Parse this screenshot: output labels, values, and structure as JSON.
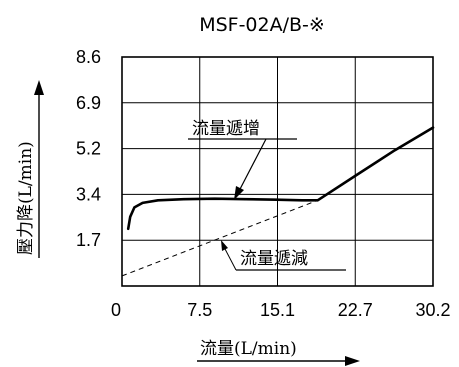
{
  "chart_data": {
    "type": "line",
    "title": "MSF-02A/B-※",
    "xlabel": "流量(L/min)",
    "ylabel": "壓力降(L/min)",
    "x_ticks": [
      "0",
      "7.5",
      "15.1",
      "22.7",
      "30.2"
    ],
    "y_ticks": [
      "1.7",
      "3.4",
      "5.2",
      "6.9",
      "8.6"
    ],
    "xlim": [
      0,
      30.2
    ],
    "ylim": [
      0,
      8.6
    ],
    "grid": true,
    "series": [
      {
        "name": "流量遞增",
        "style": "solid",
        "x": [
          0.6,
          0.8,
          1.2,
          2.0,
          3.5,
          6.0,
          9.0,
          12.0,
          15.0,
          17.5,
          19.0,
          22.7,
          26.5,
          30.2
        ],
        "y": [
          2.15,
          2.6,
          2.95,
          3.12,
          3.22,
          3.26,
          3.28,
          3.26,
          3.24,
          3.22,
          3.22,
          4.15,
          5.1,
          5.95
        ]
      },
      {
        "name": "流量遞減",
        "style": "dashed",
        "x": [
          0,
          19.0
        ],
        "y": [
          0.38,
          3.22
        ]
      }
    ]
  }
}
